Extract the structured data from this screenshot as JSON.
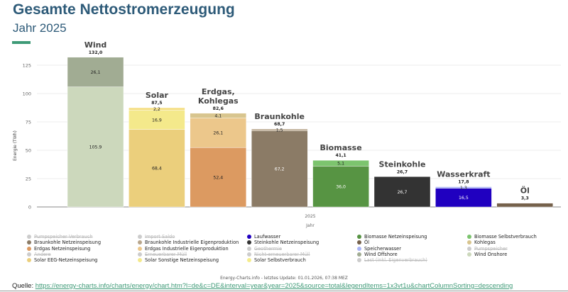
{
  "title": "Gesamte Nettostromerzeugung",
  "subtitle": "Jahr 2025",
  "chart_data": {
    "type": "bar",
    "stacked": true,
    "ylabel": "Energie (TWh)",
    "xlabel": "Jahr",
    "x_tick": "2025",
    "ylim": [
      0,
      132
    ],
    "yticks": [
      0,
      25,
      50,
      75,
      100,
      125
    ],
    "grid": true,
    "columns": [
      {
        "name": "Wind",
        "total": "132,0",
        "segments": [
          {
            "series": "Wind Onshore",
            "value": 105.9,
            "label": "105.9",
            "color": "#ccd8bc"
          },
          {
            "series": "Wind Offshore",
            "value": 26.1,
            "label": "26,1",
            "color": "#a1ac93"
          }
        ]
      },
      {
        "name": "Solar",
        "total": "87,5",
        "segments": [
          {
            "series": "Solar EEG-Netzeinspeisung",
            "value": 68.4,
            "label": "68,4",
            "color": "#ebcf7c"
          },
          {
            "series": "Solar Sonstige Netzeinspeisung",
            "value": 16.9,
            "label": "16,9",
            "color": "#f4e98b"
          },
          {
            "series": "Solar Selbstverbrauch",
            "value": 2.2,
            "label": "2,2",
            "color": "#f5df85"
          }
        ]
      },
      {
        "name": "Erdgas, Kohlegas",
        "total": "82,6",
        "segments": [
          {
            "series": "Erdgas Netzeinspeisung",
            "value": 52.4,
            "label": "52,4",
            "color": "#dc9a61"
          },
          {
            "series": "Erdgas Industrielle Eigenproduktion",
            "value": 26.1,
            "label": "26,1",
            "color": "#ecc78b"
          },
          {
            "series": "Kohlegas",
            "value": 4.1,
            "label": "4,1",
            "color": "#d8c58e"
          }
        ]
      },
      {
        "name": "Braunkohle",
        "total": "68,7",
        "segments": [
          {
            "series": "Braunkohle Netzeinspeisung",
            "value": 67.2,
            "label": "67,2",
            "color": "#8b7b66"
          },
          {
            "series": "Braunkohle Industrielle Eigenproduktion",
            "value": 1.5,
            "label": "1,5",
            "color": "#b8a68c"
          }
        ]
      },
      {
        "name": "Biomasse",
        "total": "41,1",
        "segments": [
          {
            "series": "Biomasse Netzeinspeisung",
            "value": 36.0,
            "label": "36,0",
            "color": "#579443"
          },
          {
            "series": "Biomasse Selbstverbrauch",
            "value": 5.1,
            "label": "5,1",
            "color": "#7cc46e"
          }
        ]
      },
      {
        "name": "Steinkohle",
        "total": "26,7",
        "segments": [
          {
            "series": "Steinkohle Netzeinspeisung",
            "value": 26.7,
            "label": "26,7",
            "color": "#333333"
          }
        ]
      },
      {
        "name": "Wasserkraft",
        "total": "17,8",
        "segments": [
          {
            "series": "Laufwasser",
            "value": 16.5,
            "label": "16,5",
            "color": "#2000c0"
          },
          {
            "series": "Speicherwasser",
            "value": 1.3,
            "label": "1,3",
            "color": "#a9b4f5"
          }
        ]
      },
      {
        "name": "Öl",
        "total": "3,3",
        "segments": [
          {
            "series": "Öl",
            "value": 3.3,
            "label": "",
            "color": "#75614b"
          }
        ]
      }
    ],
    "legend": [
      [
        {
          "label": "Pumpspeicher Verbrauch",
          "color": "#cccccc",
          "off": true
        },
        {
          "label": "Braunkohle Netzeinspeisung",
          "color": "#8b7b66"
        },
        {
          "label": "Erdgas Netzeinspeisung",
          "color": "#dc9a61"
        },
        {
          "label": "Andere",
          "color": "#cccccc",
          "off": true
        },
        {
          "label": "Solar EEG-Netzeinspeisung",
          "color": "#ebcf7c"
        }
      ],
      [
        {
          "label": "Import Saldo",
          "color": "#cccccc",
          "off": true
        },
        {
          "label": "Braunkohle Industrielle Eigenproduktion",
          "color": "#b8a68c"
        },
        {
          "label": "Erdgas Industrielle Eigenproduktion",
          "color": "#ecc78b"
        },
        {
          "label": "Erneuerbarer Müll",
          "color": "#cccccc",
          "off": true
        },
        {
          "label": "Solar Sonstige Netzeinspeisung",
          "color": "#f4e98b"
        }
      ],
      [
        {
          "label": "Laufwasser",
          "color": "#2000c0"
        },
        {
          "label": "Steinkohle Netzeinspeisung",
          "color": "#333333"
        },
        {
          "label": "Geothermie",
          "color": "#cccccc",
          "off": true
        },
        {
          "label": "Nicht-erneuerbarer Müll",
          "color": "#cccccc",
          "off": true
        },
        {
          "label": "Solar Selbstverbrauch",
          "color": "#f5ec8c"
        }
      ],
      [
        {
          "label": "Biomasse Netzeinspeisung",
          "color": "#579443"
        },
        {
          "label": "Öl",
          "color": "#75614b"
        },
        {
          "label": "Speicherwasser",
          "color": "#a9b4f5"
        },
        {
          "label": "Wind Offshore",
          "color": "#a1ac93"
        },
        {
          "label": "Last (inkl. Eigenverbrauch)",
          "color": "#cccccc",
          "off": true
        }
      ],
      [
        {
          "label": "Biomasse Selbstverbrauch",
          "color": "#7cc46e"
        },
        {
          "label": "Kohlegas",
          "color": "#d8c58e"
        },
        {
          "label": "Pumpspeicher",
          "color": "#cccccc",
          "off": true
        },
        {
          "label": "Wind Onshore",
          "color": "#ccd8bc"
        }
      ]
    ]
  },
  "footer": {
    "update": "Energy-Charts.info - letztes Update: 01.01.2026, 07:38 MEZ",
    "source_label": "Quelle:",
    "source_url": "https://energy-charts.info/charts/energy/chart.htm?l=de&c=DE&interval=year&year=2025&source=total&legendItems=1x3vt1u&chartColumnSorting=descending"
  }
}
